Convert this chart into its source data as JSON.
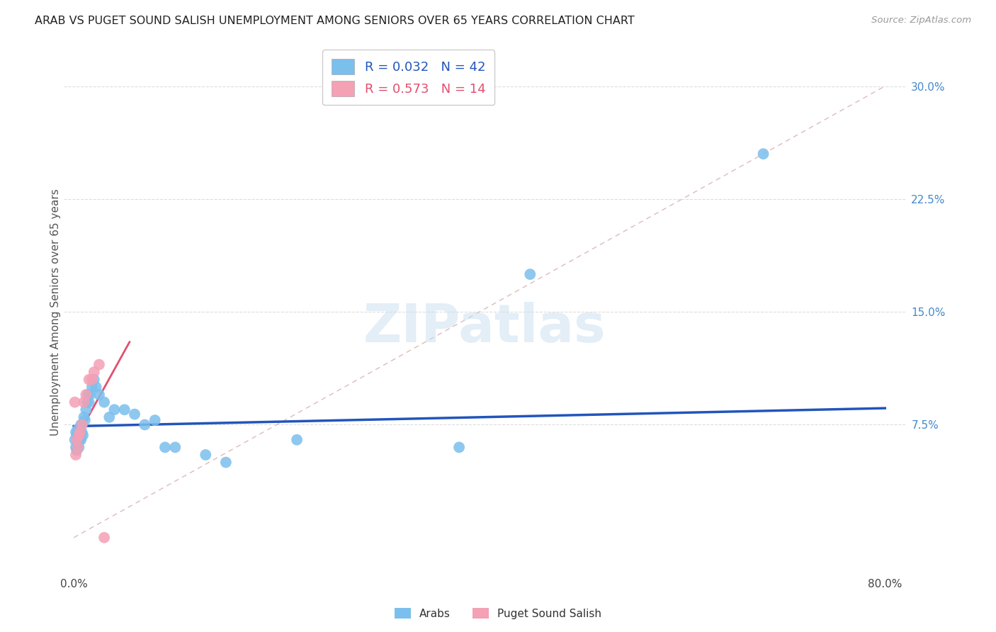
{
  "title": "ARAB VS PUGET SOUND SALISH UNEMPLOYMENT AMONG SENIORS OVER 65 YEARS CORRELATION CHART",
  "source": "Source: ZipAtlas.com",
  "ylabel": "Unemployment Among Seniors over 65 years",
  "xlim": [
    -0.01,
    0.82
  ],
  "ylim": [
    -0.025,
    0.325
  ],
  "yticks": [
    0.075,
    0.15,
    0.225,
    0.3
  ],
  "ytick_labels": [
    "7.5%",
    "15.0%",
    "22.5%",
    "30.0%"
  ],
  "xticks": [
    0.0,
    0.1,
    0.2,
    0.3,
    0.4,
    0.5,
    0.6,
    0.7,
    0.8
  ],
  "xtick_labels": [
    "0.0%",
    "",
    "",
    "",
    "",
    "",
    "",
    "",
    "80.0%"
  ],
  "arab_R": 0.032,
  "arab_N": 42,
  "salish_R": 0.573,
  "salish_N": 14,
  "arab_color": "#7bbfed",
  "salish_color": "#f4a0b5",
  "arab_line_color": "#2255bb",
  "salish_line_color": "#e05070",
  "diagonal_color": "#ddbbbb",
  "arab_x": [
    0.001,
    0.002,
    0.002,
    0.003,
    0.003,
    0.004,
    0.004,
    0.005,
    0.005,
    0.006,
    0.006,
    0.007,
    0.007,
    0.008,
    0.008,
    0.009,
    0.01,
    0.011,
    0.012,
    0.013,
    0.014,
    0.015,
    0.016,
    0.018,
    0.02,
    0.022,
    0.025,
    0.03,
    0.035,
    0.04,
    0.05,
    0.06,
    0.07,
    0.08,
    0.1,
    0.13,
    0.22,
    0.38,
    0.45,
    0.68,
    0.15,
    0.09
  ],
  "arab_y": [
    0.065,
    0.06,
    0.07,
    0.058,
    0.068,
    0.062,
    0.072,
    0.06,
    0.07,
    0.065,
    0.068,
    0.075,
    0.065,
    0.07,
    0.075,
    0.068,
    0.08,
    0.078,
    0.085,
    0.09,
    0.095,
    0.09,
    0.095,
    0.1,
    0.105,
    0.1,
    0.095,
    0.09,
    0.08,
    0.085,
    0.085,
    0.082,
    0.075,
    0.078,
    0.06,
    0.055,
    0.065,
    0.06,
    0.175,
    0.255,
    0.05,
    0.06
  ],
  "salish_x": [
    0.001,
    0.002,
    0.003,
    0.004,
    0.005,
    0.006,
    0.008,
    0.01,
    0.012,
    0.015,
    0.018,
    0.02,
    0.025,
    0.03
  ],
  "salish_y": [
    0.09,
    0.055,
    0.065,
    0.06,
    0.068,
    0.07,
    0.075,
    0.09,
    0.095,
    0.105,
    0.105,
    0.11,
    0.115,
    0.0
  ]
}
